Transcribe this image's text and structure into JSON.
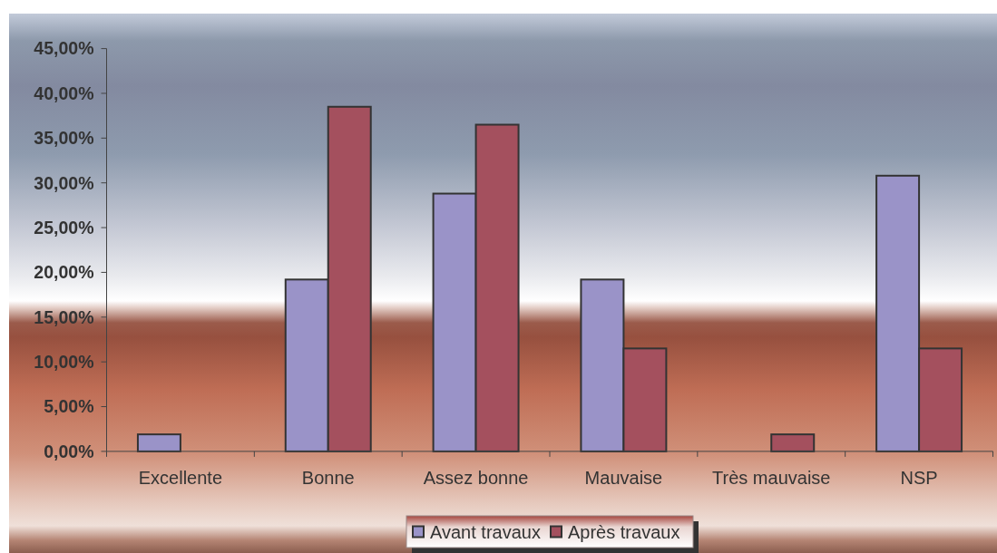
{
  "chart_data": {
    "type": "bar",
    "categories": [
      "Excellente",
      "Bonne",
      "Assez bonne",
      "Mauvaise",
      "Très mauvaise",
      "NSP"
    ],
    "series": [
      {
        "name": "Avant travaux",
        "color": "#9a93c8",
        "values": [
          1.9,
          19.2,
          28.8,
          19.2,
          0,
          30.8
        ]
      },
      {
        "name": "Après travaux",
        "color": "#a4505e",
        "values": [
          0,
          38.5,
          36.5,
          11.5,
          1.9,
          11.5
        ]
      }
    ],
    "ylim": [
      0,
      45
    ],
    "yticks": [
      {
        "value": 0,
        "label": "0,00%"
      },
      {
        "value": 5,
        "label": "5,00%"
      },
      {
        "value": 10,
        "label": "10,00%"
      },
      {
        "value": 15,
        "label": "15,00%"
      },
      {
        "value": 20,
        "label": "20,00%"
      },
      {
        "value": 25,
        "label": "25,00%"
      },
      {
        "value": 30,
        "label": "30,00%"
      },
      {
        "value": 35,
        "label": "35,00%"
      },
      {
        "value": 40,
        "label": "40,00%"
      },
      {
        "value": 45,
        "label": "45,00%"
      }
    ],
    "legend": "bottom"
  }
}
